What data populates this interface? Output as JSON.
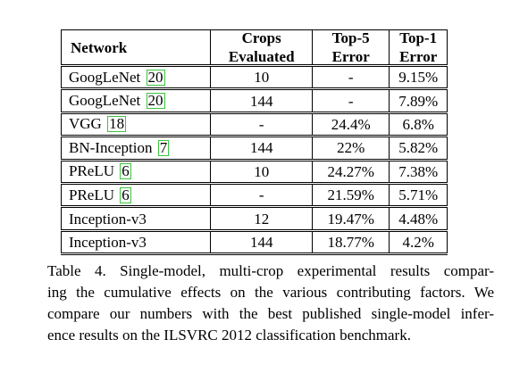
{
  "table": {
    "headers": {
      "network": "Network",
      "crops_line1": "Crops",
      "crops_line2": "Evaluated",
      "top5_line1": "Top-5",
      "top5_line2": "Error",
      "top1_line1": "Top-1",
      "top1_line2": "Error"
    },
    "rows": [
      {
        "network": "GoogLeNet",
        "cite": "20",
        "crops": "10",
        "top5": "-",
        "top1": "9.15%"
      },
      {
        "network": "GoogLeNet",
        "cite": "20",
        "crops": "144",
        "top5": "-",
        "top1": "7.89%"
      },
      {
        "network": "VGG",
        "cite": "18",
        "crops": "-",
        "top5": "24.4%",
        "top1": "6.8%"
      },
      {
        "network": "BN-Inception",
        "cite": "7",
        "crops": "144",
        "top5": "22%",
        "top1": "5.82%"
      },
      {
        "network": "PReLU",
        "cite": "6",
        "crops": "10",
        "top5": "24.27%",
        "top1": "7.38%"
      },
      {
        "network": "PReLU",
        "cite": "6",
        "crops": "-",
        "top5": "21.59%",
        "top1": "5.71%"
      },
      {
        "network": "Inception-v3",
        "cite": "",
        "crops": "12",
        "top5": "19.47%",
        "top1": "4.48%"
      },
      {
        "network": "Inception-v3",
        "cite": "",
        "crops": "144",
        "top5": "18.77%",
        "top1": "4.2%"
      }
    ]
  },
  "caption": {
    "lines": [
      "Table 4. Single-model, multi-crop experimental results compar-",
      "ing the cumulative effects on the various contributing factors. We",
      "compare our numbers with the best published single-model infer-",
      "ence results on the ILSVRC 2012 classification benchmark."
    ]
  },
  "colors": {
    "citation_box": "#3cc43c",
    "text": "#000000",
    "background": "#ffffff"
  }
}
